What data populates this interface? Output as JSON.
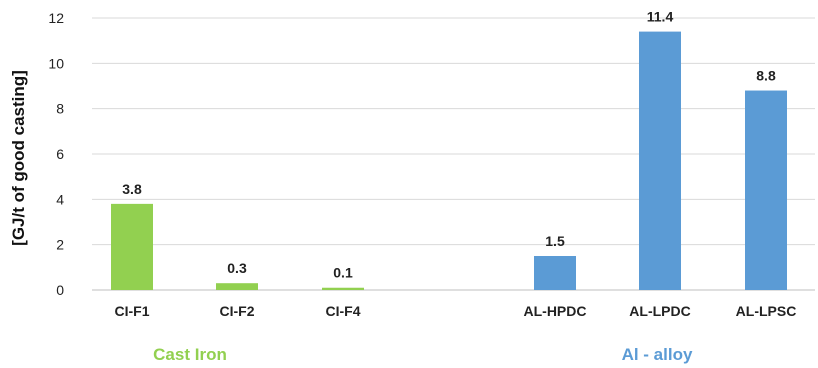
{
  "chart_data": {
    "type": "bar",
    "ylabel": "[GJ/t of good casting]",
    "ylim": [
      0,
      12
    ],
    "yticks": [
      0,
      2,
      4,
      6,
      8,
      10,
      12
    ],
    "grid": true,
    "categories": [
      "CI-F1",
      "CI-F2",
      "CI-F4",
      "AL-HPDC",
      "AL-LPDC",
      "AL-LPSC"
    ],
    "values": [
      3.8,
      0.3,
      0.1,
      1.5,
      11.4,
      8.8
    ],
    "data_labels": [
      "3.8",
      "0.3",
      "0.1",
      "1.5",
      "11.4",
      "8.8"
    ],
    "groups": [
      {
        "name": "Cast Iron",
        "color": "#92d050",
        "categories": [
          "CI-F1",
          "CI-F2",
          "CI-F4"
        ]
      },
      {
        "name": "Al - alloy",
        "color": "#5b9bd5",
        "categories": [
          "AL-HPDC",
          "AL-LPDC",
          "AL-LPSC"
        ]
      }
    ]
  }
}
